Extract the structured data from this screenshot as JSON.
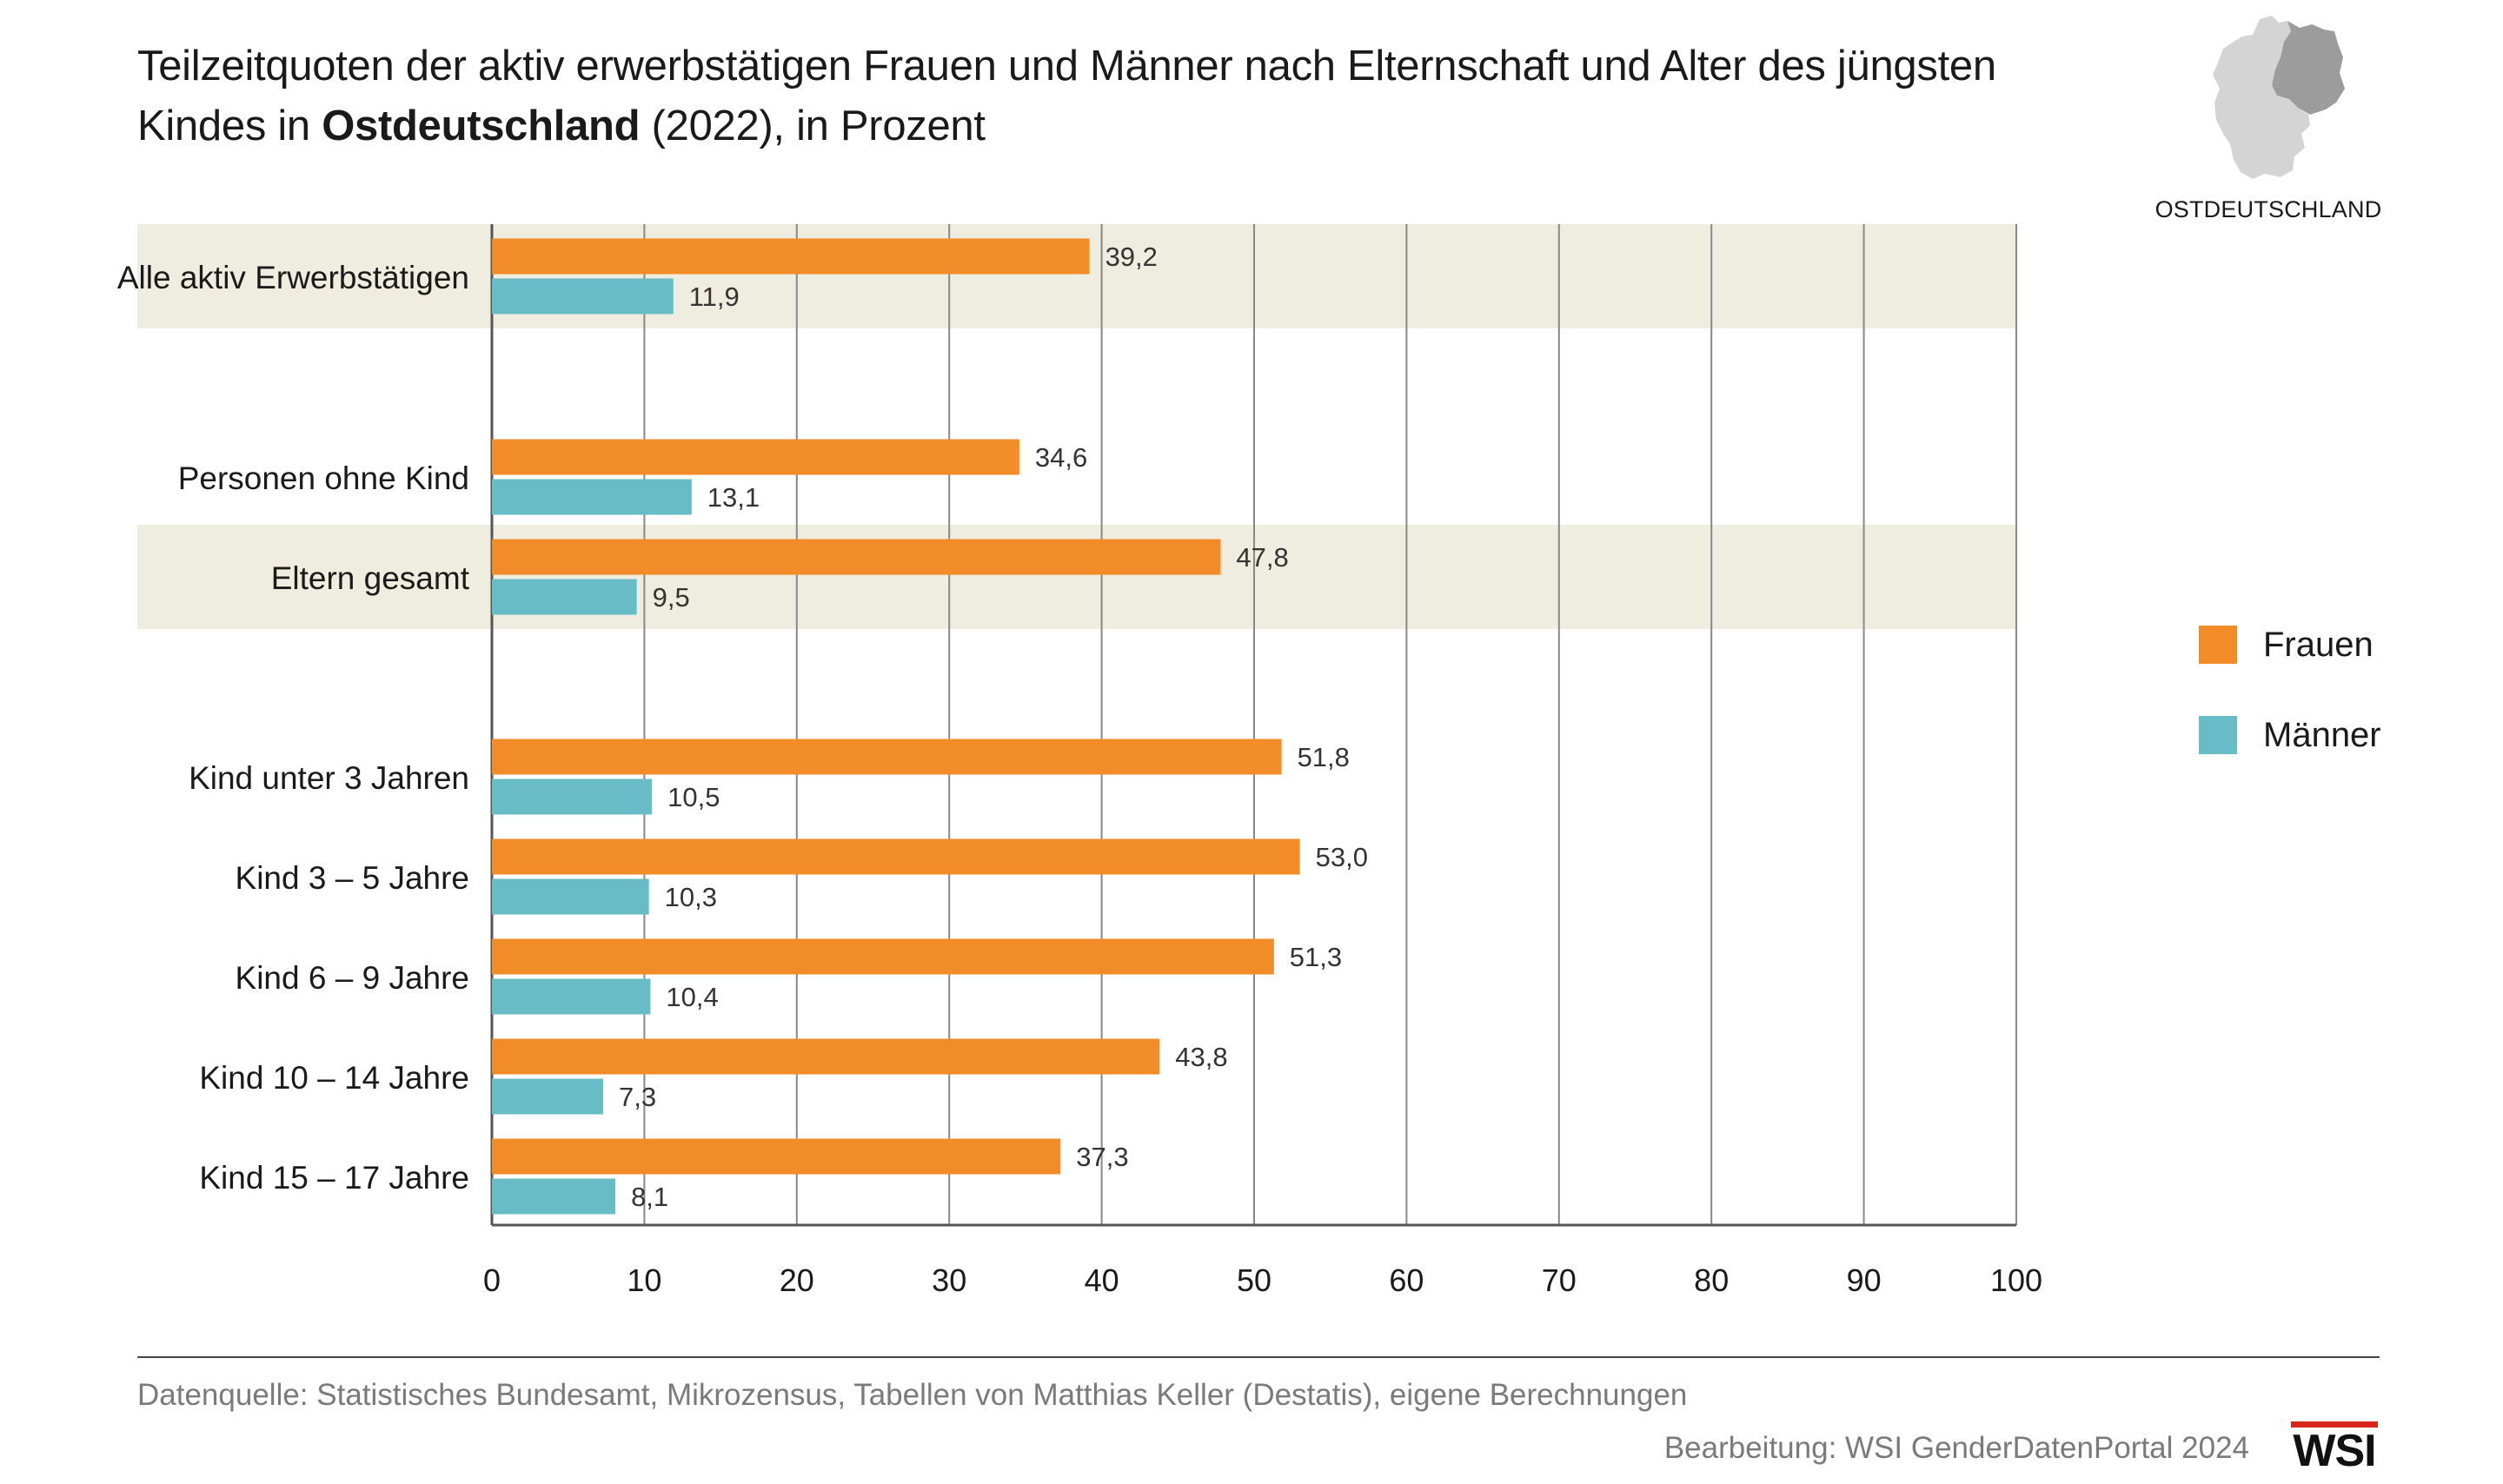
{
  "header": {
    "title_part1": "Teilzeitquoten der aktiv erwerbstätigen Frauen und Männer nach Elternschaft und Alter des jüngsten Kindes in ",
    "title_bold": "Ostdeutschland",
    "title_part2": " (2022), in Prozent",
    "map_label": "OSTDEUTSCHLAND"
  },
  "colors": {
    "frauen": "#f28c28",
    "maenner": "#68bcc6",
    "band": "#efece0",
    "grid": "#888888"
  },
  "legend": [
    {
      "label": "Frauen",
      "color": "#f28c28"
    },
    {
      "label": "Männer",
      "color": "#68bcc6"
    }
  ],
  "chart_data": {
    "type": "bar",
    "orientation": "horizontal",
    "title": "Teilzeitquoten der aktiv erwerbstätigen Frauen und Männer nach Elternschaft und Alter des jüngsten Kindes in Ostdeutschland (2022), in Prozent",
    "xlim": [
      0,
      100
    ],
    "xticks": [
      0,
      10,
      20,
      30,
      40,
      50,
      60,
      70,
      80,
      90,
      100
    ],
    "grid": true,
    "legend_position": "right",
    "categories": [
      "Alle aktiv Erwerbstätigen",
      "Personen ohne Kind",
      "Eltern gesamt",
      "Kind unter 3 Jahren",
      "Kind 3 – 5 Jahre",
      "Kind 6 – 9 Jahre",
      "Kind 10 – 14 Jahre",
      "Kind 15 – 17 Jahre"
    ],
    "highlighted_categories": [
      "Alle aktiv Erwerbstätigen",
      "Eltern gesamt"
    ],
    "series": [
      {
        "name": "Frauen",
        "values": [
          39.2,
          34.6,
          47.8,
          51.8,
          53.0,
          51.3,
          43.8,
          37.3
        ],
        "labels": [
          "39,2",
          "34,6",
          "47,8",
          "51,8",
          "53,0",
          "51,3",
          "43,8",
          "37,3"
        ]
      },
      {
        "name": "Männer",
        "values": [
          11.9,
          13.1,
          9.5,
          10.5,
          10.3,
          10.4,
          7.3,
          8.1
        ],
        "labels": [
          "11,9",
          "13,1",
          "9,5",
          "10,5",
          "10,3",
          "10,4",
          "7,3",
          "8,1"
        ]
      }
    ]
  },
  "footer": {
    "source": "Datenquelle: Statistisches Bundesamt, Mikrozensus, Tabellen von Matthias Keller (Destatis), eigene Berechnungen",
    "credit": "Bearbeitung: WSI GenderDatenPortal 2024",
    "logo_text": "WSI"
  }
}
